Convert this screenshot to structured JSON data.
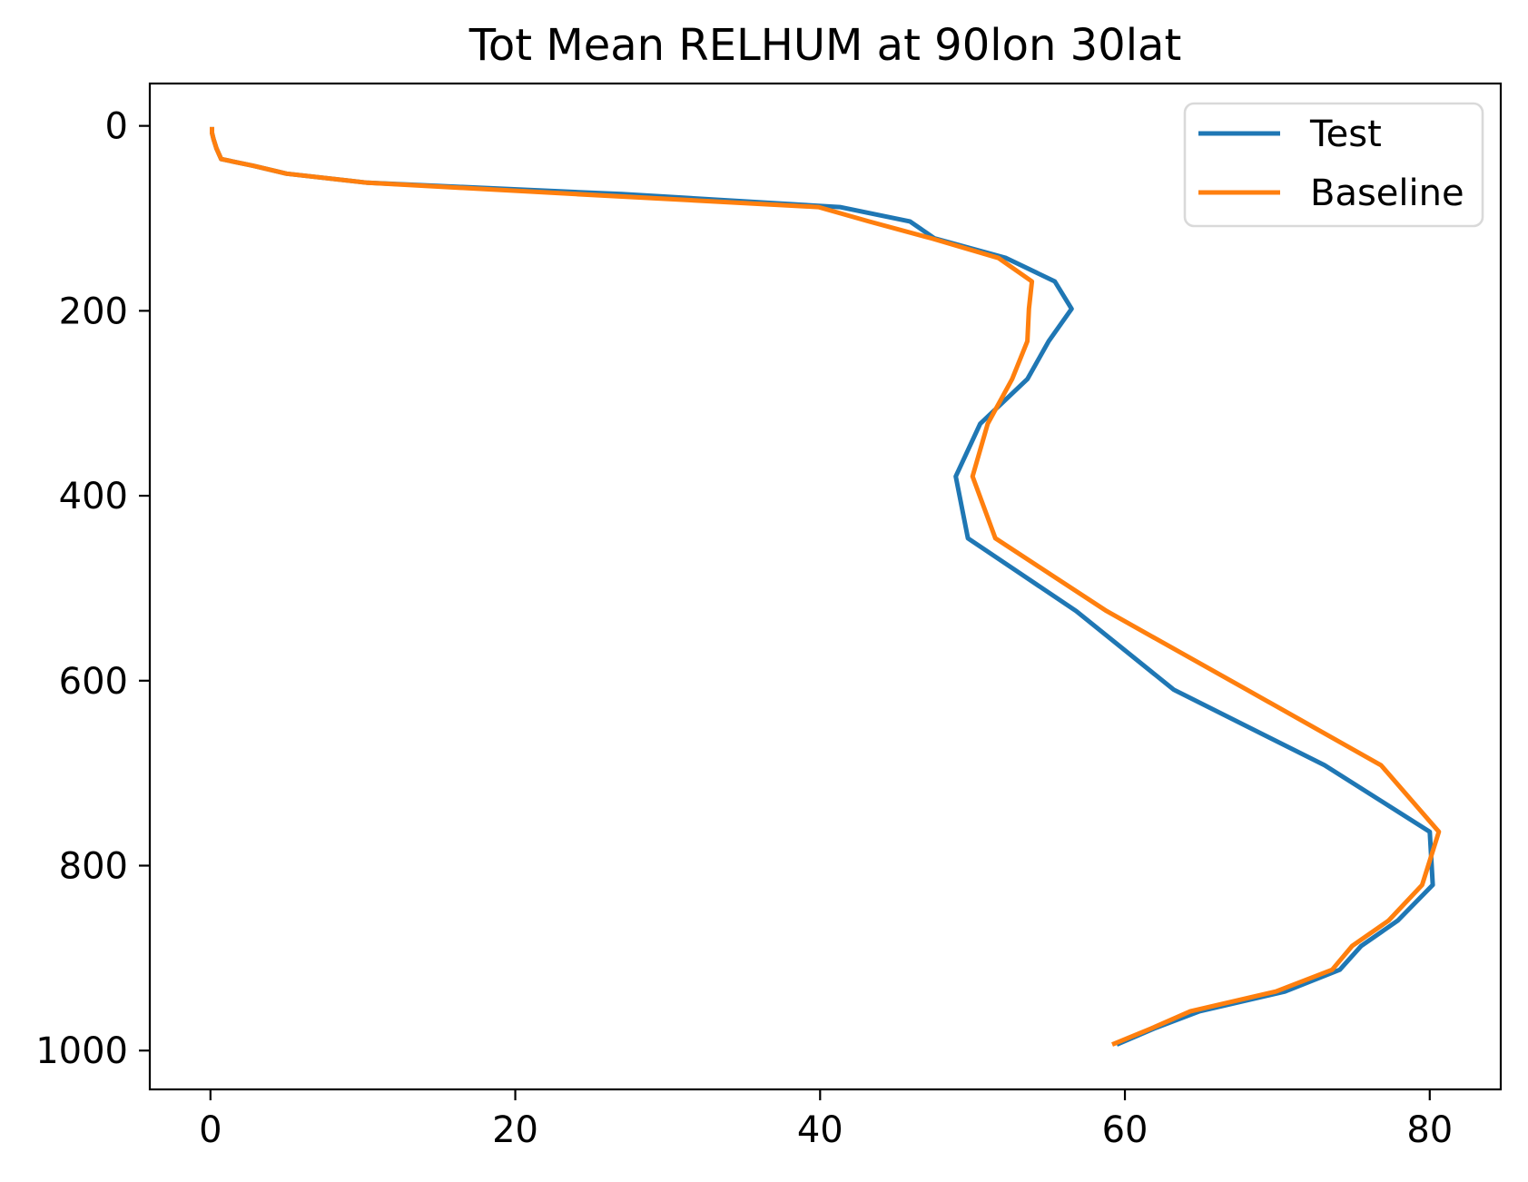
{
  "figure": {
    "title": "Tot Mean RELHUM at 90lon 30lat"
  },
  "chart_data": {
    "type": "line",
    "title": "Tot Mean RELHUM at 90lon 30lat",
    "xlabel": "",
    "ylabel": "",
    "x_axis": {
      "ticks": [
        0,
        20,
        40,
        60,
        80
      ],
      "range": [
        -3.98,
        84.66
      ]
    },
    "y_axis": {
      "ticks": [
        0,
        200,
        400,
        600,
        800,
        1000
      ],
      "range": [
        -45.8,
        1042.0
      ],
      "inverted": true
    },
    "pressure_levels": [
      3.64,
      7.59,
      14.36,
      24.61,
      35.92,
      43.19,
      51.68,
      61.52,
      73.75,
      87.82,
      103.32,
      121.55,
      142.9,
      168.2,
      197.9,
      232.8,
      273.9,
      322.2,
      379.1,
      446.0,
      524.69,
      609.77,
      691.39,
      763.4,
      820.86,
      859.53,
      887.02,
      912.64,
      936.2,
      957.49,
      976.33,
      992.56
    ],
    "series": [
      {
        "name": "Test",
        "color": "#1f77b4",
        "values": [
          0.1,
          0.1,
          0.2,
          0.4,
          0.7,
          2.8,
          5.0,
          10.3,
          27.0,
          41.3,
          45.9,
          47.5,
          52.2,
          55.4,
          56.5,
          55.0,
          53.6,
          50.5,
          48.9,
          49.7,
          56.8,
          63.2,
          73.1,
          80.0,
          80.2,
          77.9,
          75.5,
          74.1,
          70.5,
          64.9,
          61.9,
          59.6
        ]
      },
      {
        "name": "Baseline",
        "color": "#ff7f0e",
        "values": [
          0.1,
          0.1,
          0.2,
          0.4,
          0.7,
          2.8,
          5.0,
          10.3,
          24.0,
          39.9,
          43.2,
          47.3,
          51.7,
          53.9,
          53.7,
          53.6,
          52.6,
          51.0,
          50.0,
          51.5,
          58.8,
          68.0,
          76.8,
          80.6,
          79.5,
          77.3,
          74.9,
          73.6,
          69.9,
          64.3,
          61.7,
          59.3
        ]
      }
    ],
    "legend": {
      "position": "upper right",
      "entries": [
        "Test",
        "Baseline"
      ]
    }
  }
}
